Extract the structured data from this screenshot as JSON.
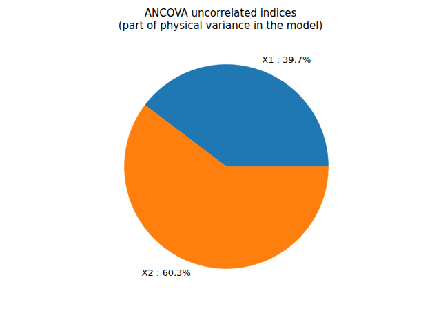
{
  "chart_data": {
    "type": "pie",
    "title": "ANCOVA uncorrelated indices\n(part of physical variance in the model)",
    "categories": [
      "X1",
      "X2"
    ],
    "values": [
      39.7,
      60.3
    ],
    "value_labels": [
      "X1 : 39.7%",
      "X2 : 60.3%"
    ],
    "colors": [
      "#1f77b4",
      "#ff7f0e"
    ],
    "data_labels": true
  }
}
